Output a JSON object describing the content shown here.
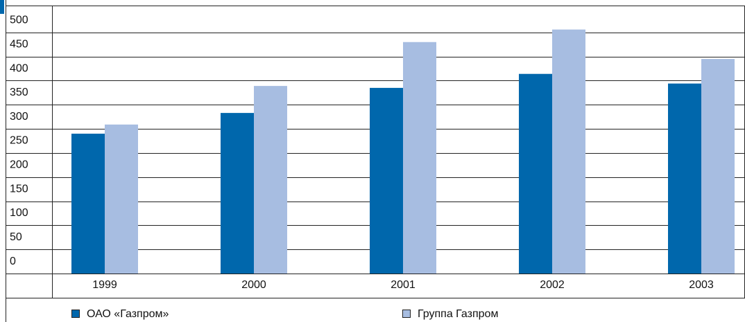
{
  "chart_data": {
    "type": "bar",
    "categories": [
      "1999",
      "2000",
      "2001",
      "2002",
      "2003"
    ],
    "series": [
      {
        "name": "ОАО «Газпром»",
        "color": "#0067ac",
        "values": [
          290,
          333,
          385,
          414,
          394
        ]
      },
      {
        "name": "Группа Газпром",
        "color": "#a7bde1",
        "values": [
          309,
          389,
          480,
          506,
          445
        ]
      }
    ],
    "ylim": [
      0,
      550
    ],
    "yticks": [
      0,
      50,
      100,
      150,
      200,
      250,
      300,
      350,
      400,
      450,
      500
    ],
    "grid": true
  }
}
